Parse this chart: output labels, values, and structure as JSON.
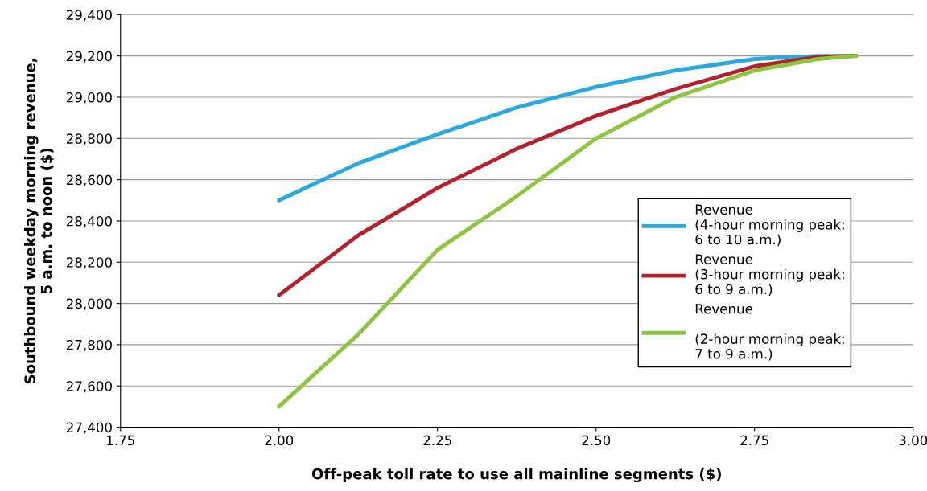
{
  "chart_data": {
    "type": "line",
    "xlabel": "Off-peak toll rate to use all mainline segments ($)",
    "ylabel": "Southbound weekday morning revenue,\n5 a.m. to noon ($)",
    "xlim": [
      1.75,
      3.0
    ],
    "xticks": [
      {
        "value": 1.75,
        "label": "1.75"
      },
      {
        "value": 2.0,
        "label": "2.00"
      },
      {
        "value": 2.25,
        "label": "2.25"
      },
      {
        "value": 2.5,
        "label": "2.50"
      },
      {
        "value": 2.75,
        "label": "2.75"
      },
      {
        "value": 3.0,
        "label": "3.00"
      }
    ],
    "ylim": [
      27400,
      29400
    ],
    "yticks": [
      {
        "value": 27400,
        "label": "27,400"
      },
      {
        "value": 27600,
        "label": "27,600"
      },
      {
        "value": 27800,
        "label": "27,800"
      },
      {
        "value": 28000,
        "label": "28,000"
      },
      {
        "value": 28200,
        "label": "28,200"
      },
      {
        "value": 28400,
        "label": "28,400"
      },
      {
        "value": 28600,
        "label": "28,600"
      },
      {
        "value": 28800,
        "label": "28,800"
      },
      {
        "value": 29000,
        "label": "29,000"
      },
      {
        "value": 29200,
        "label": "29,200"
      },
      {
        "value": 29400,
        "label": "29,400"
      }
    ],
    "x": [
      2.0,
      2.125,
      2.25,
      2.375,
      2.5,
      2.625,
      2.75,
      2.85,
      2.91
    ],
    "series": [
      {
        "name": "Revenue\n(4-hour morning peak:\n6 to 10 a.m.)",
        "color": "#29a9df",
        "values": [
          28500,
          28680,
          28820,
          28950,
          29050,
          29130,
          29185,
          29200,
          29200
        ]
      },
      {
        "name": "Revenue\n(3-hour morning peak:\n6 to 9 a.m.)",
        "color": "#b5202e",
        "values": [
          28040,
          28330,
          28560,
          28750,
          28910,
          29040,
          29150,
          29195,
          29200
        ]
      },
      {
        "name": "Revenue\n\n(2-hour morning peak:\n7 to 9 a.m.)",
        "color": "#8cc63f",
        "values": [
          27500,
          27850,
          28260,
          28520,
          28800,
          29000,
          29130,
          29185,
          29200
        ]
      }
    ],
    "grid": "y",
    "legend": "right",
    "marker": "none",
    "line_style": "solid"
  }
}
